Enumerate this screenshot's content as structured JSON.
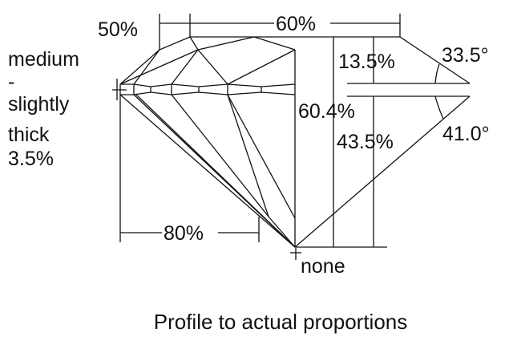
{
  "labels": {
    "lower_half_length": "50%",
    "table": "60%",
    "crown_height": "13.5%",
    "crown_angle": "33.5°",
    "total_depth": "60.4%",
    "pavilion_depth": "43.5%",
    "pavilion_angle": "41.0°",
    "star_length": "80%",
    "culet": "none",
    "girdle": [
      "medium",
      "-",
      "slightly",
      "thick",
      "3.5%"
    ]
  },
  "caption": "Profile to actual proportions",
  "colors": {
    "line": "#111111",
    "background": "#ffffff"
  }
}
